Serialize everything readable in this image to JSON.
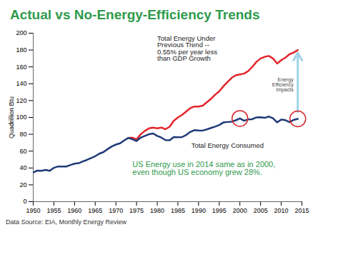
{
  "chart_data": {
    "type": "line",
    "title": "Actual vs No-Energy-Efficiency Trends",
    "y_label": "Quadrillion Btu",
    "source": "Data Source: EIA, Monthly Energy Review",
    "x": [
      1950,
      1951,
      1952,
      1953,
      1954,
      1955,
      1956,
      1957,
      1958,
      1959,
      1960,
      1961,
      1962,
      1963,
      1964,
      1965,
      1966,
      1967,
      1968,
      1969,
      1970,
      1971,
      1972,
      1973,
      1974,
      1975,
      1976,
      1977,
      1978,
      1979,
      1980,
      1981,
      1982,
      1983,
      1984,
      1985,
      1986,
      1987,
      1988,
      1989,
      1990,
      1991,
      1992,
      1993,
      1994,
      1995,
      1996,
      1997,
      1998,
      1999,
      2000,
      2001,
      2002,
      2003,
      2004,
      2005,
      2006,
      2007,
      2008,
      2009,
      2010,
      2011,
      2012,
      2013,
      2014
    ],
    "series": [
      {
        "name": "Total Energy Under Previous Trend -- 0.55% per year less than GDP Growth",
        "color": "#e3262c",
        "values": [
          null,
          null,
          null,
          null,
          null,
          null,
          null,
          null,
          null,
          null,
          null,
          null,
          null,
          null,
          null,
          null,
          null,
          null,
          null,
          null,
          null,
          null,
          null,
          75.7,
          76,
          74,
          80,
          84,
          87,
          88,
          87,
          88,
          86,
          89,
          96,
          100,
          103,
          107,
          111,
          113,
          113,
          114,
          118,
          122,
          127,
          131,
          137,
          142,
          147,
          150,
          151,
          152,
          155,
          160,
          166,
          170,
          172,
          173,
          170,
          164,
          168,
          171,
          175,
          177,
          180
        ]
      },
      {
        "name": "Total Energy Consumed",
        "color": "#1f3a78",
        "values": [
          34.6,
          36.9,
          36.7,
          37.7,
          36.6,
          40.2,
          41.8,
          41.8,
          41.7,
          43.5,
          45.1,
          45.7,
          47.8,
          49.6,
          51.8,
          54.0,
          57.0,
          58.9,
          62.4,
          65.6,
          67.8,
          69.3,
          72.7,
          75.7,
          74.0,
          72.0,
          76.0,
          78.0,
          80.0,
          80.9,
          78.1,
          76.1,
          73.1,
          72.9,
          76.7,
          76.4,
          76.7,
          79.2,
          82.8,
          84.9,
          84.5,
          84.4,
          85.8,
          87.5,
          89.1,
          91.0,
          94.0,
          94.6,
          95.0,
          96.6,
          98.8,
          96.1,
          97.6,
          97.9,
          100.1,
          100.2,
          99.5,
          101.0,
          99.0,
          94.1,
          97.5,
          96.8,
          94.4,
          97.1,
          98.3
        ]
      }
    ],
    "annotations": [
      "Energy Efficiency Impacts",
      "US Energy use in 2014 same as in 2000, even though US economy grew 28%."
    ],
    "highlight_x": [
      2000,
      2014
    ],
    "xlim": [
      1950,
      2015
    ],
    "ylim": [
      0,
      200
    ],
    "xticks": [
      1950,
      1955,
      1960,
      1965,
      1970,
      1975,
      1980,
      1985,
      1990,
      1995,
      2000,
      2005,
      2010,
      2015
    ],
    "yticks": [
      0,
      20,
      40,
      60,
      80,
      100,
      120,
      140,
      160,
      180,
      200
    ]
  }
}
